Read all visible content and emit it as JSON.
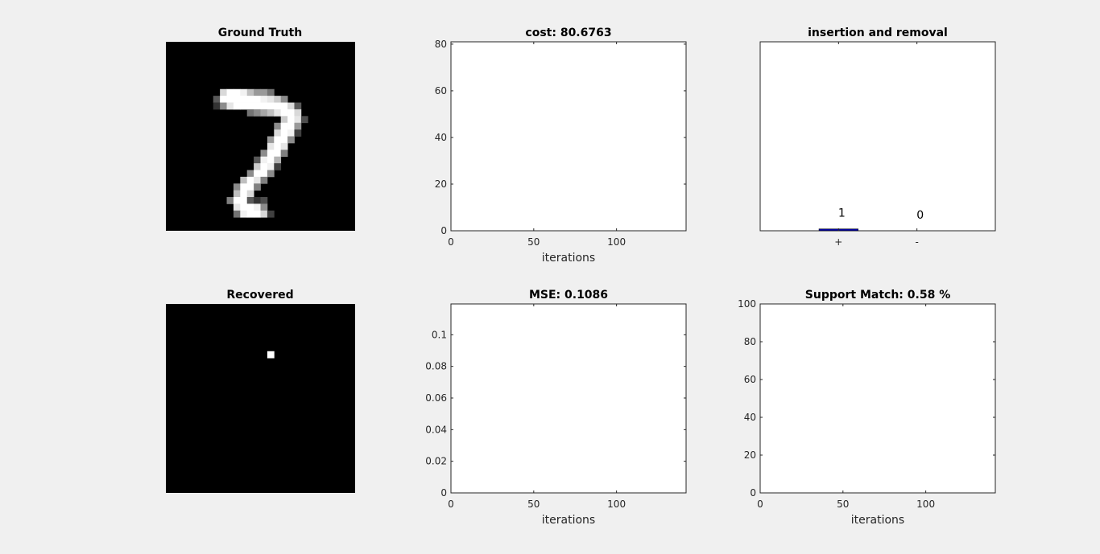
{
  "chart_data": [
    {
      "id": "ground-truth",
      "type": "heatmap",
      "title": "Ground Truth",
      "grid_size": 28,
      "pixels": [
        [
          8,
          7,
          0.85
        ],
        [
          9,
          7,
          1
        ],
        [
          10,
          7,
          1
        ],
        [
          11,
          7,
          0.95
        ],
        [
          12,
          7,
          0.75
        ],
        [
          13,
          7,
          0.6
        ],
        [
          14,
          7,
          0.6
        ],
        [
          15,
          7,
          0.45
        ],
        [
          7,
          8,
          0.35
        ],
        [
          8,
          8,
          1
        ],
        [
          9,
          8,
          1
        ],
        [
          10,
          8,
          1
        ],
        [
          11,
          8,
          1
        ],
        [
          12,
          8,
          1
        ],
        [
          13,
          8,
          1
        ],
        [
          14,
          8,
          0.95
        ],
        [
          15,
          8,
          0.9
        ],
        [
          16,
          8,
          0.8
        ],
        [
          17,
          8,
          0.55
        ],
        [
          7,
          9,
          0.2
        ],
        [
          8,
          9,
          0.55
        ],
        [
          9,
          9,
          0.9
        ],
        [
          10,
          9,
          1
        ],
        [
          11,
          9,
          1
        ],
        [
          12,
          9,
          1
        ],
        [
          13,
          9,
          1
        ],
        [
          14,
          9,
          1
        ],
        [
          15,
          9,
          1
        ],
        [
          16,
          9,
          1
        ],
        [
          17,
          9,
          1
        ],
        [
          18,
          9,
          0.85
        ],
        [
          19,
          9,
          0.35
        ],
        [
          12,
          10,
          0.45
        ],
        [
          13,
          10,
          0.55
        ],
        [
          14,
          10,
          0.65
        ],
        [
          15,
          10,
          0.75
        ],
        [
          16,
          10,
          0.9
        ],
        [
          17,
          10,
          1
        ],
        [
          18,
          10,
          1
        ],
        [
          19,
          10,
          0.85
        ],
        [
          17,
          11,
          0.8
        ],
        [
          18,
          11,
          1
        ],
        [
          19,
          11,
          0.9
        ],
        [
          20,
          11,
          0.3
        ],
        [
          16,
          12,
          0.55
        ],
        [
          17,
          12,
          1
        ],
        [
          18,
          12,
          1
        ],
        [
          19,
          12,
          0.6
        ],
        [
          16,
          13,
          0.85
        ],
        [
          17,
          13,
          1
        ],
        [
          18,
          13,
          0.95
        ],
        [
          19,
          13,
          0.25
        ],
        [
          15,
          14,
          0.6
        ],
        [
          16,
          14,
          1
        ],
        [
          17,
          14,
          1
        ],
        [
          18,
          14,
          0.55
        ],
        [
          15,
          15,
          0.9
        ],
        [
          16,
          15,
          1
        ],
        [
          17,
          15,
          0.9
        ],
        [
          14,
          16,
          0.55
        ],
        [
          15,
          16,
          1
        ],
        [
          16,
          16,
          1
        ],
        [
          17,
          16,
          0.5
        ],
        [
          13,
          17,
          0.35
        ],
        [
          14,
          17,
          0.95
        ],
        [
          15,
          17,
          1
        ],
        [
          16,
          17,
          0.7
        ],
        [
          13,
          18,
          0.8
        ],
        [
          14,
          18,
          1
        ],
        [
          15,
          18,
          0.95
        ],
        [
          16,
          18,
          0.25
        ],
        [
          12,
          19,
          0.55
        ],
        [
          13,
          19,
          1
        ],
        [
          14,
          19,
          1
        ],
        [
          15,
          19,
          0.55
        ],
        [
          11,
          20,
          0.75
        ],
        [
          12,
          20,
          1
        ],
        [
          13,
          20,
          0.9
        ],
        [
          14,
          20,
          0.5
        ],
        [
          10,
          21,
          0.55
        ],
        [
          11,
          21,
          1
        ],
        [
          12,
          21,
          1
        ],
        [
          13,
          21,
          0.5
        ],
        [
          10,
          22,
          0.75
        ],
        [
          11,
          22,
          1
        ],
        [
          12,
          22,
          0.85
        ],
        [
          9,
          23,
          0.5
        ],
        [
          10,
          23,
          1
        ],
        [
          11,
          23,
          1
        ],
        [
          12,
          23,
          0.35
        ],
        [
          13,
          23,
          0.2
        ],
        [
          14,
          23,
          0.3
        ],
        [
          10,
          24,
          0.9
        ],
        [
          11,
          24,
          1
        ],
        [
          12,
          24,
          1
        ],
        [
          13,
          24,
          0.95
        ],
        [
          14,
          24,
          0.55
        ],
        [
          10,
          25,
          0.45
        ],
        [
          11,
          25,
          0.95
        ],
        [
          12,
          25,
          1
        ],
        [
          13,
          25,
          1
        ],
        [
          14,
          25,
          0.85
        ],
        [
          15,
          25,
          0.25
        ]
      ]
    },
    {
      "id": "recovered",
      "type": "heatmap",
      "title": "Recovered",
      "grid_size": 28,
      "pixels": [
        [
          15,
          7,
          1
        ]
      ]
    },
    {
      "id": "cost",
      "type": "line",
      "title": "cost:  80.6763",
      "xlabel": "iterations",
      "ylabel": "",
      "xlim": [
        0,
        142
      ],
      "ylim": [
        0,
        81
      ],
      "xticks": [
        0,
        50,
        100
      ],
      "yticks": [
        0,
        20,
        40,
        60,
        80
      ],
      "box": "top-right-ticks",
      "series": []
    },
    {
      "id": "insertion-removal",
      "type": "bar",
      "title": "insertion and removal",
      "xlabel": "",
      "ylabel": "",
      "categories": [
        "+",
        "-"
      ],
      "values": [
        1,
        0
      ],
      "value_labels": [
        "1",
        "0"
      ],
      "ylim": [
        0,
        100
      ],
      "xlim": [
        0,
        3
      ],
      "bar_color": "#0000a0"
    },
    {
      "id": "mse",
      "type": "line",
      "title": "MSE: 0.1086",
      "xlabel": "iterations",
      "ylabel": "",
      "xlim": [
        0,
        142
      ],
      "ylim": [
        0,
        0.1195
      ],
      "xticks": [
        0,
        50,
        100
      ],
      "yticks": [
        0,
        0.02,
        0.04,
        0.06,
        0.08,
        0.1
      ],
      "series": []
    },
    {
      "id": "support-match",
      "type": "line",
      "title": "Support Match: 0.58 %",
      "xlabel": "iterations",
      "ylabel": "",
      "xlim": [
        0,
        142
      ],
      "ylim": [
        0,
        100
      ],
      "xticks": [
        0,
        50,
        100
      ],
      "yticks": [
        0,
        20,
        40,
        60,
        80,
        100
      ],
      "series": []
    }
  ]
}
